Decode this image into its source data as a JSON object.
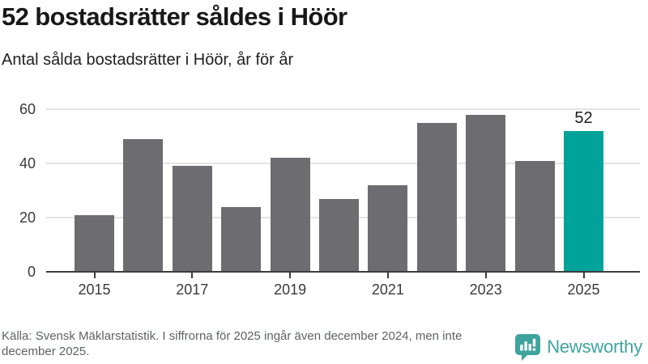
{
  "header": {
    "title": "52 bostadsrätter såldes i Höör",
    "subtitle": "Antal sålda bostadsrätter i Höör, år för år"
  },
  "chart_data": {
    "type": "bar",
    "title": "52 bostadsrätter såldes i Höör",
    "subtitle": "Antal sålda bostadsrätter i Höör, år för år",
    "categories": [
      "2015",
      "2016",
      "2017",
      "2018",
      "2019",
      "2020",
      "2021",
      "2022",
      "2023",
      "2024",
      "2025"
    ],
    "values": [
      21,
      49,
      39,
      24,
      42,
      27,
      32,
      55,
      58,
      41,
      52
    ],
    "xlabel": "",
    "ylabel": "",
    "ylim": [
      0,
      60
    ],
    "y_ticks": [
      0,
      20,
      40,
      60
    ],
    "x_tick_labels": [
      "2015",
      "2017",
      "2019",
      "2021",
      "2023",
      "2025"
    ],
    "grid": true,
    "legend_position": "none",
    "bar_color": "#6d6c71",
    "highlight_index": 10,
    "highlight_color": "#00a399",
    "highlight_value_label": "52"
  },
  "footer": {
    "source_note": "Källa: Svensk Mäklarstatistik. I siffrorna för 2025 ingår även december 2024, men inte december 2025.",
    "brand": "Newsworthy"
  },
  "colors": {
    "grid": "#e3e3e3",
    "axis": "#3c3c3c",
    "tick_text": "#3a3a3a",
    "muted_text": "#5d6166",
    "brand_teal": "#3fa39d"
  }
}
